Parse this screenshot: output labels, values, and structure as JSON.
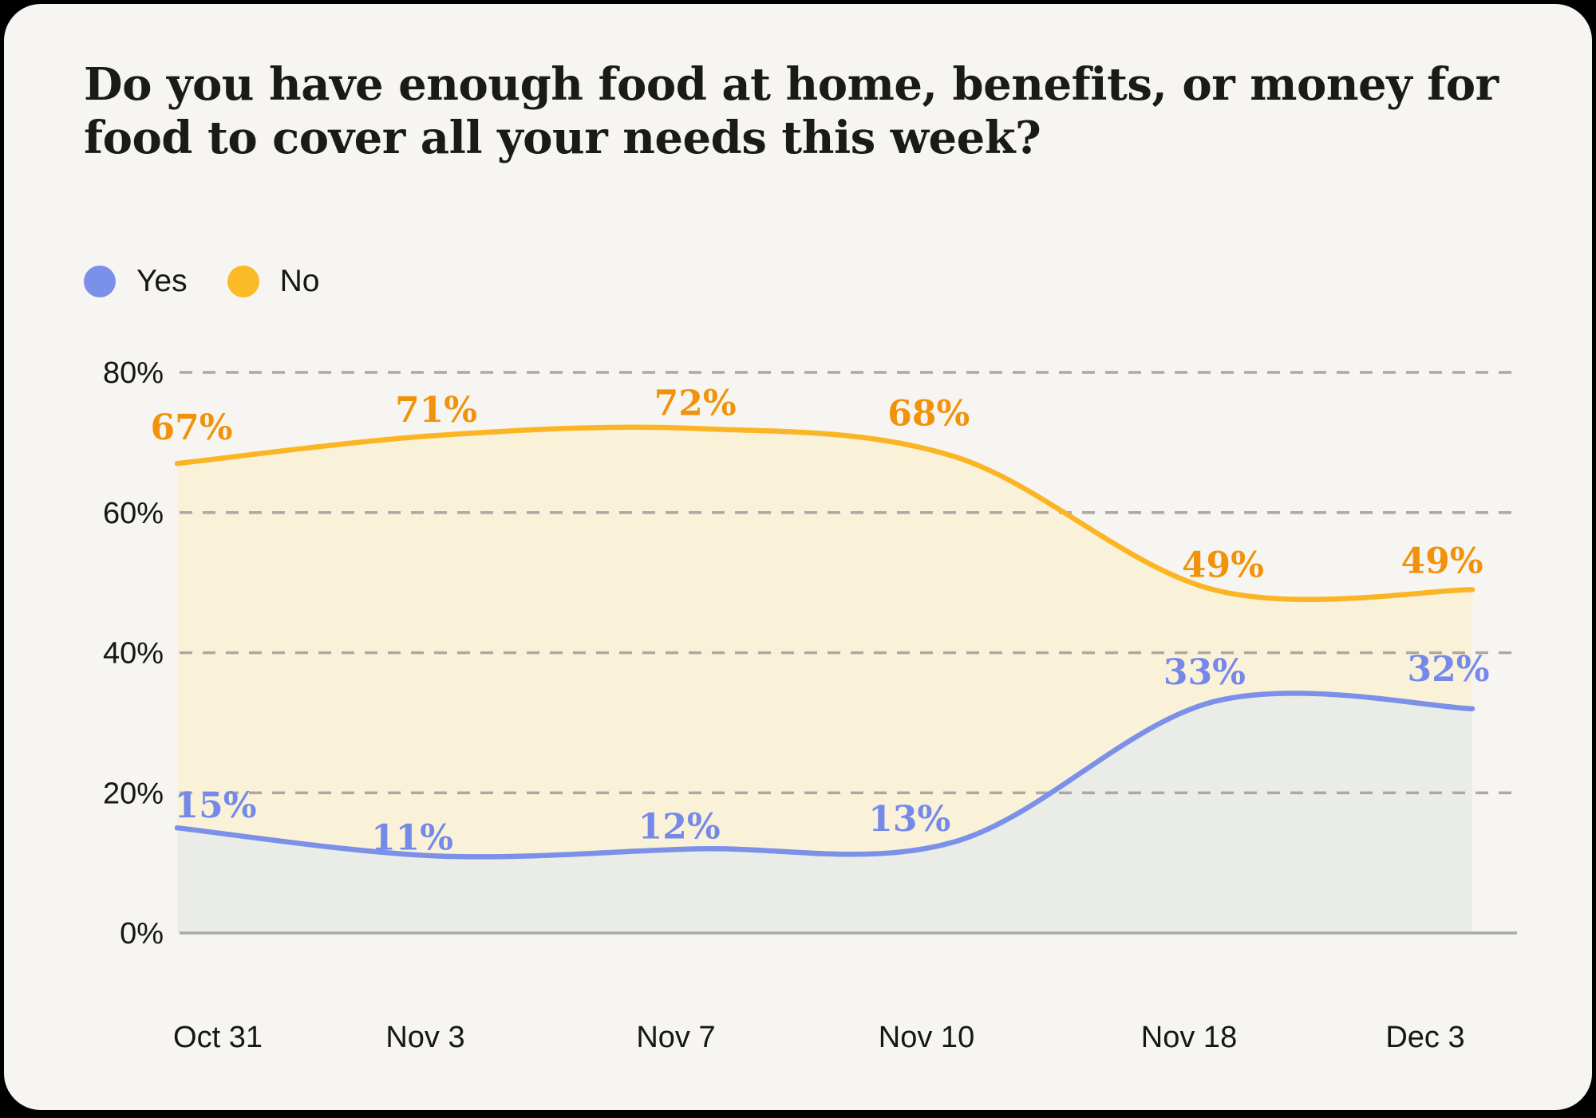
{
  "title": "Do you have enough food at home, benefits, or money for food to cover all your needs this week?",
  "title_lines": [
    "Do you have enough food at home, benefits, or money for",
    "food to cover all your needs this week?"
  ],
  "legend": {
    "items": [
      {
        "label": "Yes",
        "color": "#7B90E8"
      },
      {
        "label": "No",
        "color": "#FBBB26"
      }
    ]
  },
  "colors": {
    "frame": "#000000",
    "card_background": "#F7F5F1",
    "title": "#1A1A18",
    "axis_text": "#161616",
    "gridline": "#ACA9A4",
    "baseline": "#A9A9A5"
  },
  "chart_data": {
    "type": "area",
    "title": "Do you have enough food at home, benefits, or money for food to cover all your needs this week?",
    "categories": [
      "Oct 31",
      "Nov 3",
      "Nov 7",
      "Nov 10",
      "Nov 18",
      "Dec 3"
    ],
    "series": [
      {
        "name": "Yes",
        "values": [
          15,
          11,
          12,
          13,
          33,
          32
        ],
        "line_color": "#7B90E8",
        "fill_color": "#EAECE7",
        "label_color": "#7589E8"
      },
      {
        "name": "No",
        "values": [
          67,
          71,
          72,
          68,
          49,
          49
        ],
        "line_color": "#FBB524",
        "fill_color": "#FAF2D8",
        "label_color": "#F0930B"
      }
    ],
    "data_label_format": "{value}%",
    "y_ticks": [
      {
        "value": 0,
        "label": "0%"
      },
      {
        "value": 20,
        "label": "20%"
      },
      {
        "value": 40,
        "label": "40%"
      },
      {
        "value": 60,
        "label": "60%"
      },
      {
        "value": 80,
        "label": "80%"
      }
    ],
    "ylim": [
      0,
      80
    ],
    "xlabel": "",
    "ylabel": "",
    "grid": "horizontal-dashed",
    "legend_position": "top-left"
  }
}
